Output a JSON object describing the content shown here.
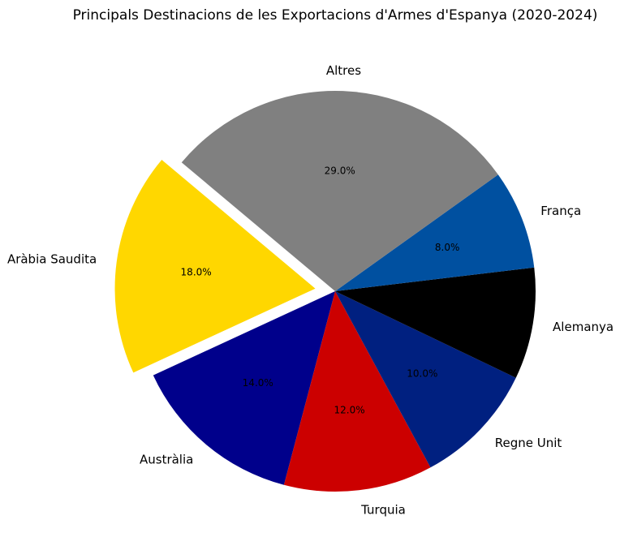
{
  "chart_data": {
    "type": "pie",
    "title": "Principals Destinacions de les Exportacions d'Armes d'Espanya (2020-2024)",
    "categories": [
      "Aràbia Saudita",
      "Austràlia",
      "Turquia",
      "Regne Unit",
      "Alemanya",
      "França",
      "Altres"
    ],
    "values": [
      18.0,
      14.0,
      12.0,
      10.0,
      9.0,
      8.0,
      29.0
    ],
    "value_labels": [
      "18.0%",
      "14.0%",
      "12.0%",
      "10.0%",
      "",
      "8.0%",
      "29.0%"
    ],
    "colors": [
      "#FFD700",
      "#00008B",
      "#CC0000",
      "#002080",
      "#000000",
      "#0050A0",
      "#808080"
    ],
    "exploded": [
      "Aràbia Saudita"
    ],
    "start_angle_deg": 140,
    "direction": "counterclockwise",
    "legend": "none"
  }
}
